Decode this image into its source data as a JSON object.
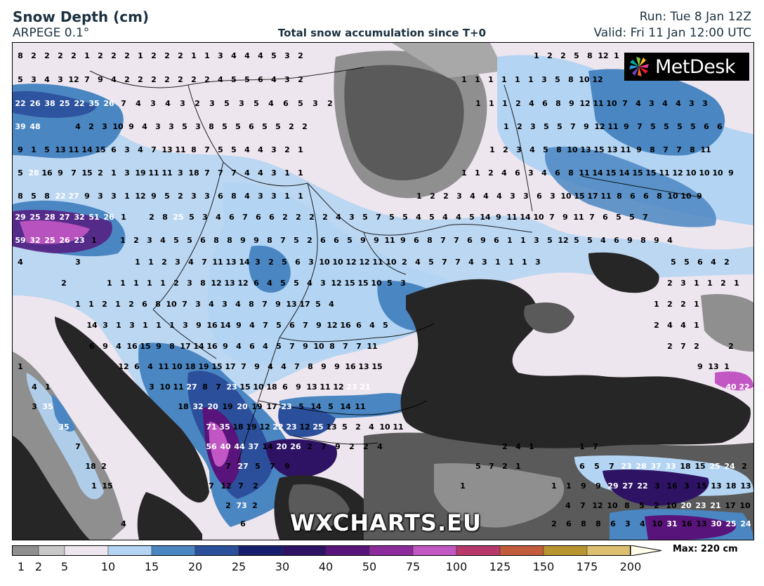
{
  "header": {
    "title": "Snow Depth (cm)",
    "model": "ARPEGE 0.1°",
    "subtitle": "Total snow accumulation since T+0",
    "run": "Run: Tue 8 Jan 12Z",
    "valid": "Valid: Fri 11 Jan 12:00 UTC"
  },
  "logo": {
    "text": "MetDesk",
    "icon": "metdesk-pinwheel-icon"
  },
  "watermark": "WXCHARTS.EU",
  "legend": {
    "labels": [
      "1",
      "2",
      "5",
      "10",
      "15",
      "20",
      "25",
      "30",
      "40",
      "50",
      "75",
      "100",
      "125",
      "150",
      "175",
      "200"
    ],
    "colors": [
      "#8f8f8f",
      "#c8c8c8",
      "#eee6ee",
      "#b3d4f2",
      "#4a86c2",
      "#2c4f9b",
      "#161f6e",
      "#2e1365",
      "#58147a",
      "#8d2a9c",
      "#c257c4",
      "#b8386a",
      "#c25c3a",
      "#b89530",
      "#dcc070",
      "#f5e6a8"
    ],
    "max_label": "Max: 220 cm"
  },
  "colors": {
    "sea": "#262626",
    "land_low": "#eee6ee",
    "snow_light": "#b3d4f2",
    "snow_mid": "#4a86c2",
    "snow_deep": "#2c4f9b",
    "snow_heavy": "#58147a",
    "snow_extreme": "#c257c4",
    "header_text": "#1c3140"
  },
  "rows": [
    {
      "x0": 28,
      "y": 78,
      "step": 19,
      "values": [
        "8",
        "2",
        "2",
        "2",
        "2",
        "1",
        "2",
        "2",
        "2",
        "1",
        "2",
        "2",
        "2",
        "1",
        "1",
        "3",
        "4",
        "4",
        "4",
        "5",
        "3",
        "2"
      ]
    },
    {
      "x0": 763,
      "y": 78,
      "step": 19,
      "values": [
        "1",
        "2",
        "2",
        "5",
        "8",
        "12",
        "1"
      ]
    },
    {
      "x0": 28,
      "y": 112,
      "step": 19,
      "values": [
        "5",
        "3",
        "4",
        "3",
        "12",
        "7",
        "9",
        "4",
        "2",
        "2",
        "2",
        "2",
        "2",
        "2",
        "2",
        "4",
        "5",
        "5",
        "6",
        "4",
        "3",
        "2"
      ]
    },
    {
      "x0": 660,
      "y": 112,
      "step": 19,
      "values": [
        "1",
        "1",
        "1",
        "1",
        "1",
        "1",
        "3",
        "5",
        "8",
        "10",
        "12"
      ]
    },
    {
      "x0": 28,
      "y": 146,
      "step": 21,
      "values": [
        "22",
        "26",
        "38",
        "25",
        "22",
        "35",
        "26",
        "7",
        "4",
        "3",
        "4",
        "3",
        "2",
        "3",
        "5",
        "3",
        "5",
        "4",
        "6",
        "5",
        "3",
        "2"
      ]
    },
    {
      "x0": 680,
      "y": 146,
      "step": 19,
      "values": [
        "1",
        "1",
        "1",
        "2",
        "4",
        "6",
        "8",
        "9",
        "12",
        "11",
        "10",
        "7",
        "4",
        "3",
        "4",
        "4",
        "3",
        "3"
      ]
    },
    {
      "x0": 28,
      "y": 179,
      "step": 21,
      "values": [
        "39",
        "48"
      ]
    },
    {
      "x0": 110,
      "y": 179,
      "step": 19,
      "values": [
        "4",
        "2",
        "3",
        "10",
        "9",
        "4",
        "3",
        "3",
        "5",
        "3",
        "8",
        "5",
        "5",
        "6",
        "5",
        "5",
        "2",
        "2"
      ]
    },
    {
      "x0": 720,
      "y": 179,
      "step": 19,
      "values": [
        "1",
        "2",
        "3",
        "5",
        "5",
        "7",
        "9",
        "12",
        "11",
        "9",
        "7",
        "5",
        "5",
        "5",
        "5",
        "6",
        "6"
      ]
    },
    {
      "x0": 28,
      "y": 212,
      "step": 19,
      "values": [
        "9",
        "1",
        "5",
        "13",
        "11",
        "14",
        "15",
        "6",
        "3",
        "4",
        "7",
        "13",
        "11",
        "8",
        "7",
        "5",
        "5",
        "4",
        "4",
        "3",
        "2",
        "1"
      ]
    },
    {
      "x0": 700,
      "y": 212,
      "step": 19,
      "values": [
        "1",
        "2",
        "3",
        "4",
        "5",
        "8",
        "10",
        "13",
        "15",
        "13",
        "11",
        "9",
        "8",
        "7",
        "7",
        "8",
        "11"
      ]
    },
    {
      "x0": 28,
      "y": 245,
      "step": 19,
      "values": [
        "5",
        "28",
        "16",
        "9",
        "7",
        "15",
        "2",
        "1",
        "3",
        "19",
        "11",
        "11",
        "3",
        "18",
        "7",
        "7",
        "7",
        "4",
        "4",
        "3",
        "1",
        "1"
      ]
    },
    {
      "x0": 660,
      "y": 245,
      "step": 19,
      "values": [
        "1",
        "1",
        "2",
        "4",
        "6",
        "3",
        "4",
        "6",
        "8",
        "11",
        "14",
        "15",
        "14",
        "15",
        "15",
        "11",
        "12",
        "10",
        "10",
        "10",
        "9"
      ]
    },
    {
      "x0": 28,
      "y": 278,
      "step": 19,
      "values": [
        "8",
        "5",
        "8",
        "22",
        "27",
        "9",
        "3",
        "3",
        "1",
        "12",
        "9",
        "5",
        "2",
        "3",
        "3",
        "6",
        "8",
        "4",
        "3",
        "3",
        "1",
        "1"
      ]
    },
    {
      "x0": 596,
      "y": 278,
      "step": 19,
      "values": [
        "1",
        "2",
        "2",
        "3",
        "4",
        "4",
        "4",
        "3",
        "3",
        "6",
        "3",
        "10",
        "15",
        "17",
        "11",
        "8",
        "6",
        "6",
        "8",
        "10",
        "10",
        "9"
      ]
    },
    {
      "x0": 28,
      "y": 308,
      "step": 21,
      "values": [
        "29",
        "25",
        "28",
        "27",
        "32",
        "51",
        "26",
        "1"
      ]
    },
    {
      "x0": 215,
      "y": 308,
      "step": 19,
      "values": [
        "2",
        "8",
        "25",
        "5",
        "3",
        "4",
        "6",
        "7",
        "6",
        "6",
        "2",
        "2",
        "2",
        "2",
        "4",
        "3",
        "5",
        "7",
        "5",
        "5",
        "4",
        "5",
        "4",
        "4",
        "5",
        "14",
        "9",
        "11",
        "14",
        "10",
        "7",
        "9",
        "11",
        "7",
        "6",
        "5",
        "5",
        "7"
      ]
    },
    {
      "x0": 28,
      "y": 341,
      "step": 21,
      "values": [
        "59",
        "32",
        "25",
        "26",
        "23",
        "1"
      ]
    },
    {
      "x0": 174,
      "y": 341,
      "step": 19,
      "values": [
        "1",
        "2",
        "3",
        "4",
        "5",
        "5",
        "6",
        "8",
        "8",
        "9",
        "9",
        "8",
        "7",
        "5",
        "2",
        "6",
        "6",
        "5",
        "9",
        "9",
        "11",
        "9",
        "6",
        "8",
        "7",
        "7",
        "6",
        "9",
        "6",
        "1",
        "1",
        "3",
        "5",
        "12",
        "5",
        "5",
        "4",
        "6",
        "9",
        "8",
        "9",
        "4"
      ]
    },
    {
      "x0": 28,
      "y": 372,
      "step": 19,
      "values": [
        "4"
      ]
    },
    {
      "x0": 110,
      "y": 372,
      "step": 19,
      "values": [
        "3"
      ]
    },
    {
      "x0": 195,
      "y": 372,
      "step": 19,
      "values": [
        "1",
        "1",
        "2",
        "3",
        "4",
        "7",
        "11",
        "13",
        "14",
        "3",
        "2",
        "5",
        "6",
        "3",
        "10",
        "10",
        "12",
        "12",
        "11",
        "10",
        "2",
        "4",
        "5",
        "7",
        "7",
        "4",
        "3",
        "1",
        "1",
        "1",
        "3"
      ]
    },
    {
      "x0": 958,
      "y": 372,
      "step": 19,
      "values": [
        "5",
        "5",
        "6",
        "4",
        "2"
      ]
    },
    {
      "x0": 90,
      "y": 402,
      "step": 19,
      "values": [
        "2"
      ]
    },
    {
      "x0": 155,
      "y": 402,
      "step": 19,
      "values": [
        "1",
        "1",
        "1",
        "1",
        "1",
        "2",
        "3",
        "8",
        "12",
        "13",
        "12",
        "6",
        "4",
        "5",
        "5",
        "4",
        "3",
        "12",
        "15",
        "15",
        "10",
        "5",
        "3"
      ]
    },
    {
      "x0": 953,
      "y": 402,
      "step": 19,
      "values": [
        "2",
        "3",
        "1",
        "1",
        "2",
        "1"
      ]
    },
    {
      "x0": 110,
      "y": 432,
      "step": 19,
      "values": [
        "1",
        "1",
        "2",
        "1",
        "2",
        "6",
        "8",
        "10",
        "7",
        "3",
        "4",
        "3",
        "4",
        "8",
        "7",
        "9",
        "13",
        "17",
        "5",
        "4"
      ]
    },
    {
      "x0": 934,
      "y": 432,
      "step": 19,
      "values": [
        "1",
        "2",
        "2",
        "1"
      ]
    },
    {
      "x0": 130,
      "y": 462,
      "step": 19,
      "values": [
        "14",
        "3",
        "1",
        "3",
        "1",
        "1",
        "1",
        "3",
        "9",
        "16",
        "14",
        "9",
        "4",
        "7",
        "5",
        "6",
        "7",
        "9",
        "12",
        "16",
        "6",
        "4",
        "5"
      ]
    },
    {
      "x0": 934,
      "y": 462,
      "step": 19,
      "values": [
        "2",
        "4",
        "4",
        "1"
      ]
    },
    {
      "x0": 130,
      "y": 492,
      "step": 19,
      "values": [
        "6",
        "9",
        "4",
        "16",
        "15",
        "9",
        "8",
        "17",
        "14",
        "16",
        "9",
        "4",
        "6",
        "4",
        "5",
        "7",
        "9",
        "10",
        "8",
        "7",
        "7",
        "11"
      ]
    },
    {
      "x0": 953,
      "y": 492,
      "step": 19,
      "values": [
        "2",
        "7",
        "2"
      ]
    },
    {
      "x0": 1040,
      "y": 492,
      "step": 19,
      "values": [
        "2"
      ]
    },
    {
      "x0": 28,
      "y": 521,
      "step": 19,
      "values": [
        "1"
      ]
    },
    {
      "x0": 175,
      "y": 521,
      "step": 19,
      "values": [
        "12",
        "6",
        "4",
        "11",
        "10",
        "18",
        "19",
        "15",
        "17",
        "7",
        "9",
        "4",
        "4",
        "7",
        "8",
        "9",
        "9",
        "16",
        "13",
        "15"
      ]
    },
    {
      "x0": 996,
      "y": 521,
      "step": 19,
      "values": [
        "9",
        "13",
        "1"
      ]
    },
    {
      "x0": 48,
      "y": 550,
      "step": 19,
      "values": [
        "4",
        "1"
      ]
    },
    {
      "x0": 215,
      "y": 550,
      "step": 19,
      "values": [
        "3",
        "10",
        "11",
        "27",
        "8",
        "7",
        "23",
        "15",
        "10",
        "18",
        "6",
        "9",
        "13",
        "11",
        "12",
        "23",
        "21"
      ]
    },
    {
      "x0": 1040,
      "y": 550,
      "step": 19,
      "values": [
        "40",
        "22"
      ]
    },
    {
      "x0": 48,
      "y": 578,
      "step": 19,
      "values": [
        "3",
        "35"
      ]
    },
    {
      "x0": 260,
      "y": 578,
      "step": 21,
      "values": [
        "18",
        "32",
        "20",
        "19",
        "20",
        "19",
        "17",
        "23",
        "5",
        "14",
        "5",
        "14",
        "11"
      ]
    },
    {
      "x0": 90,
      "y": 607,
      "step": 19,
      "values": [
        "35"
      ]
    },
    {
      "x0": 300,
      "y": 607,
      "step": 19,
      "values": [
        "71",
        "35",
        "18",
        "19",
        "12",
        "22",
        "23",
        "12",
        "25",
        "13",
        "5",
        "2",
        "4",
        "10",
        "11"
      ]
    },
    {
      "x0": 110,
      "y": 635,
      "step": 19,
      "values": [
        "7"
      ]
    },
    {
      "x0": 300,
      "y": 635,
      "step": 20,
      "values": [
        "56",
        "40",
        "44",
        "37",
        "14",
        "20",
        "26",
        "2",
        "7",
        "9",
        "2",
        "2",
        "4"
      ]
    },
    {
      "x0": 718,
      "y": 635,
      "step": 19,
      "values": [
        "2",
        "4",
        "1"
      ]
    },
    {
      "x0": 828,
      "y": 635,
      "step": 19,
      "values": [
        "1",
        "7"
      ]
    },
    {
      "x0": 128,
      "y": 663,
      "step": 19,
      "values": [
        "18",
        "2"
      ]
    },
    {
      "x0": 324,
      "y": 663,
      "step": 21,
      "values": [
        "7",
        "27",
        "5",
        "7",
        "9"
      ]
    },
    {
      "x0": 680,
      "y": 663,
      "step": 19,
      "values": [
        "5",
        "7",
        "2",
        "1"
      ]
    },
    {
      "x0": 828,
      "y": 663,
      "step": 21,
      "values": [
        "6",
        "5",
        "7",
        "23",
        "28",
        "37",
        "33",
        "18",
        "15",
        "25",
        "24",
        "2"
      ]
    },
    {
      "x0": 133,
      "y": 691,
      "step": 19,
      "values": [
        "1",
        "15"
      ]
    },
    {
      "x0": 300,
      "y": 691,
      "step": 21,
      "values": [
        "7",
        "12",
        "7",
        "2"
      ]
    },
    {
      "x0": 658,
      "y": 691,
      "step": 19,
      "values": [
        "1"
      ]
    },
    {
      "x0": 788,
      "y": 691,
      "step": 21,
      "values": [
        "1",
        "1",
        "9",
        "9",
        "29",
        "27",
        "22",
        "3",
        "16",
        "3",
        "15",
        "13",
        "18",
        "13"
      ]
    },
    {
      "x0": 324,
      "y": 719,
      "step": 19,
      "values": [
        "2",
        "73",
        "2"
      ]
    },
    {
      "x0": 808,
      "y": 719,
      "step": 21,
      "values": [
        "4",
        "7",
        "12",
        "10",
        "8",
        "5",
        "2",
        "10",
        "20",
        "23",
        "21",
        "17",
        "10"
      ]
    },
    {
      "x0": 175,
      "y": 745,
      "step": 19,
      "values": [
        "4"
      ]
    },
    {
      "x0": 345,
      "y": 745,
      "step": 19,
      "values": [
        "6"
      ]
    },
    {
      "x0": 788,
      "y": 745,
      "step": 21,
      "values": [
        "2",
        "6",
        "8",
        "8",
        "6",
        "3",
        "4",
        "10",
        "31",
        "16",
        "13",
        "30",
        "25",
        "24"
      ]
    }
  ]
}
